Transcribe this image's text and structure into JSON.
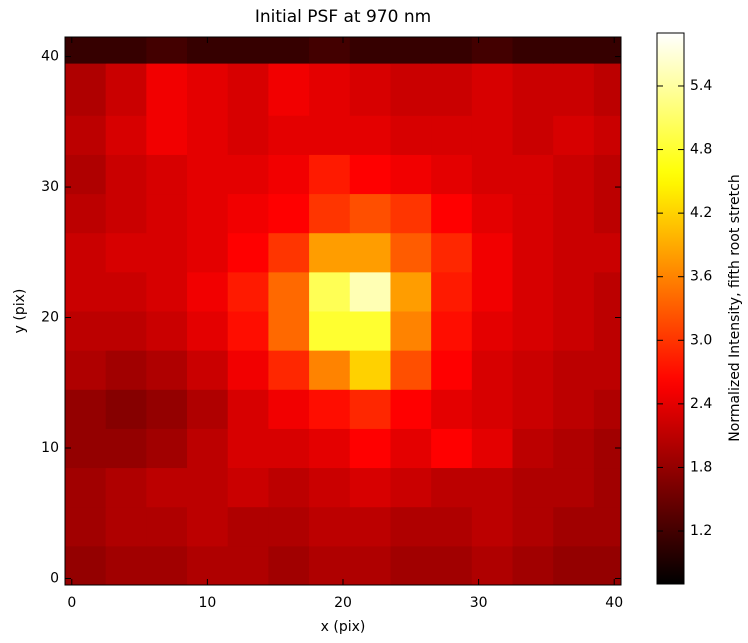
{
  "chart_data": {
    "type": "heatmap",
    "title": "Initial PSF at 970 nm",
    "x_label": "x (pix)",
    "y_label": "y (pix)",
    "colorbar_label": "Normalized Intensity, fifth root stretch",
    "colormap": "hot",
    "xlim": [
      -0.5,
      40.5
    ],
    "ylim": [
      -0.5,
      41.5
    ],
    "xticks": [
      0,
      10,
      20,
      30,
      40
    ],
    "yticks": [
      0,
      10,
      20,
      30,
      40
    ],
    "x_edges": [
      -0.5,
      2.5,
      5.5,
      8.5,
      11.5,
      14.5,
      17.5,
      20.5,
      23.5,
      26.5,
      29.5,
      32.5,
      35.5,
      38.5,
      40.5
    ],
    "y_edges": [
      -0.5,
      2.5,
      5.5,
      8.5,
      11.5,
      14.5,
      17.5,
      20.5,
      23.5,
      26.5,
      29.5,
      32.5,
      35.5,
      39.5,
      41.5
    ],
    "clim": [
      0.7,
      5.9
    ],
    "cticks": [
      1.2,
      1.8,
      2.4,
      {
        "value": 3,
        "label": "3.0"
      },
      3.6,
      4.2,
      4.8,
      5.4
    ],
    "values": [
      [
        1.8,
        1.9,
        1.9,
        2.0,
        2.0,
        1.9,
        2.0,
        2.0,
        1.9,
        1.9,
        2.0,
        1.9,
        1.8,
        1.8
      ],
      [
        1.9,
        2.0,
        2.0,
        2.1,
        2.0,
        2.0,
        2.1,
        2.1,
        2.0,
        2.0,
        2.1,
        2.0,
        1.9,
        1.9
      ],
      [
        1.9,
        2.0,
        2.1,
        2.1,
        2.2,
        2.1,
        2.2,
        2.3,
        2.2,
        2.1,
        2.1,
        2.0,
        2.0,
        1.9
      ],
      [
        1.8,
        1.8,
        1.9,
        2.1,
        2.3,
        2.3,
        2.4,
        2.6,
        2.4,
        2.6,
        2.4,
        2.1,
        2.0,
        1.9
      ],
      [
        1.8,
        1.7,
        1.8,
        2.0,
        2.3,
        2.5,
        2.7,
        2.9,
        2.6,
        2.4,
        2.3,
        2.2,
        2.1,
        2.0
      ],
      [
        2.0,
        1.9,
        2.0,
        2.2,
        2.5,
        2.9,
        3.6,
        4.2,
        3.2,
        2.6,
        2.3,
        2.2,
        2.1,
        2.1
      ],
      [
        2.1,
        2.1,
        2.2,
        2.4,
        2.7,
        3.4,
        4.8,
        4.8,
        3.6,
        2.7,
        2.4,
        2.3,
        2.2,
        2.1
      ],
      [
        2.2,
        2.2,
        2.3,
        2.5,
        2.8,
        3.4,
        5.0,
        5.5,
        3.8,
        2.8,
        2.5,
        2.3,
        2.2,
        2.1
      ],
      [
        2.2,
        2.3,
        2.3,
        2.4,
        2.6,
        3.0,
        3.8,
        3.8,
        3.3,
        2.9,
        2.5,
        2.3,
        2.2,
        2.2
      ],
      [
        2.1,
        2.2,
        2.3,
        2.4,
        2.5,
        2.6,
        3.0,
        3.2,
        3.0,
        2.6,
        2.4,
        2.3,
        2.2,
        2.1
      ],
      [
        2.0,
        2.2,
        2.3,
        2.4,
        2.4,
        2.5,
        2.8,
        2.6,
        2.5,
        2.4,
        2.3,
        2.3,
        2.2,
        2.1
      ],
      [
        2.1,
        2.3,
        2.5,
        2.4,
        2.3,
        2.4,
        2.4,
        2.4,
        2.3,
        2.3,
        2.3,
        2.2,
        2.3,
        2.2
      ],
      [
        2.0,
        2.2,
        2.5,
        2.4,
        2.3,
        2.5,
        2.4,
        2.3,
        2.2,
        2.2,
        2.3,
        2.2,
        2.2,
        2.1
      ],
      [
        1.1,
        1.1,
        1.2,
        1.1,
        1.1,
        1.1,
        1.2,
        1.1,
        1.1,
        1.1,
        1.2,
        1.1,
        1.1,
        1.1
      ]
    ]
  }
}
